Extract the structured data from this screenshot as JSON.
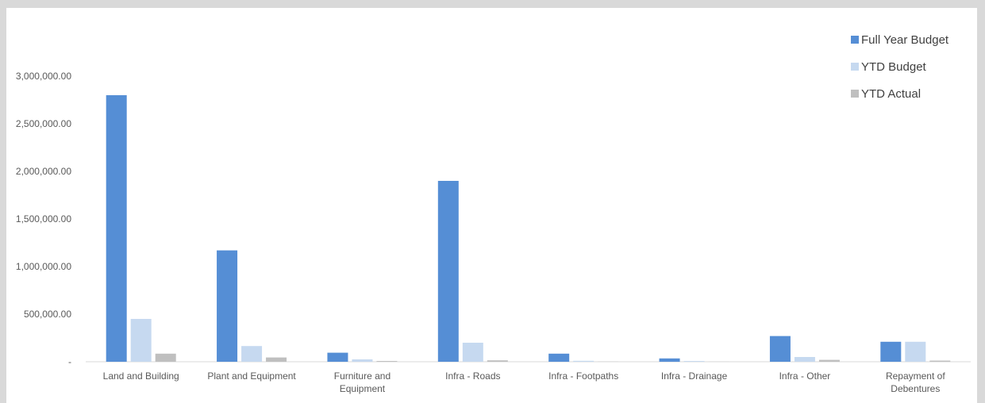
{
  "chart_data": {
    "type": "bar",
    "title": "",
    "xlabel": "",
    "ylabel": "",
    "ylim": [
      0,
      3000000
    ],
    "yticks": [
      0,
      500000,
      1000000,
      1500000,
      2000000,
      2500000,
      3000000
    ],
    "ytick_labels": [
      "-",
      "500,000.00",
      "1,000,000.00",
      "1,500,000.00",
      "2,000,000.00",
      "2,500,000.00",
      "3,000,000.00"
    ],
    "grid": false,
    "legend_position": "top-right",
    "categories": [
      [
        "Land and Building"
      ],
      [
        "Plant and Equipment"
      ],
      [
        "Furniture and",
        "Equipment"
      ],
      [
        "Infra - Roads"
      ],
      [
        "Infra - Footpaths"
      ],
      [
        "Infra - Drainage"
      ],
      [
        "Infra - Other"
      ],
      [
        "Repayment of",
        "Debentures"
      ]
    ],
    "series": [
      {
        "name": "Full Year Budget",
        "color": "#558ed5",
        "values": [
          2800000,
          1170000,
          95000,
          1900000,
          85000,
          35000,
          270000,
          210000
        ]
      },
      {
        "name": "YTD Budget",
        "color": "#c6d9f0",
        "values": [
          450000,
          165000,
          25000,
          200000,
          10000,
          8000,
          50000,
          210000
        ]
      },
      {
        "name": "YTD Actual",
        "color": "#bfbfbf",
        "values": [
          85000,
          45000,
          8000,
          15000,
          2000,
          1000,
          20000,
          12000
        ]
      }
    ]
  }
}
